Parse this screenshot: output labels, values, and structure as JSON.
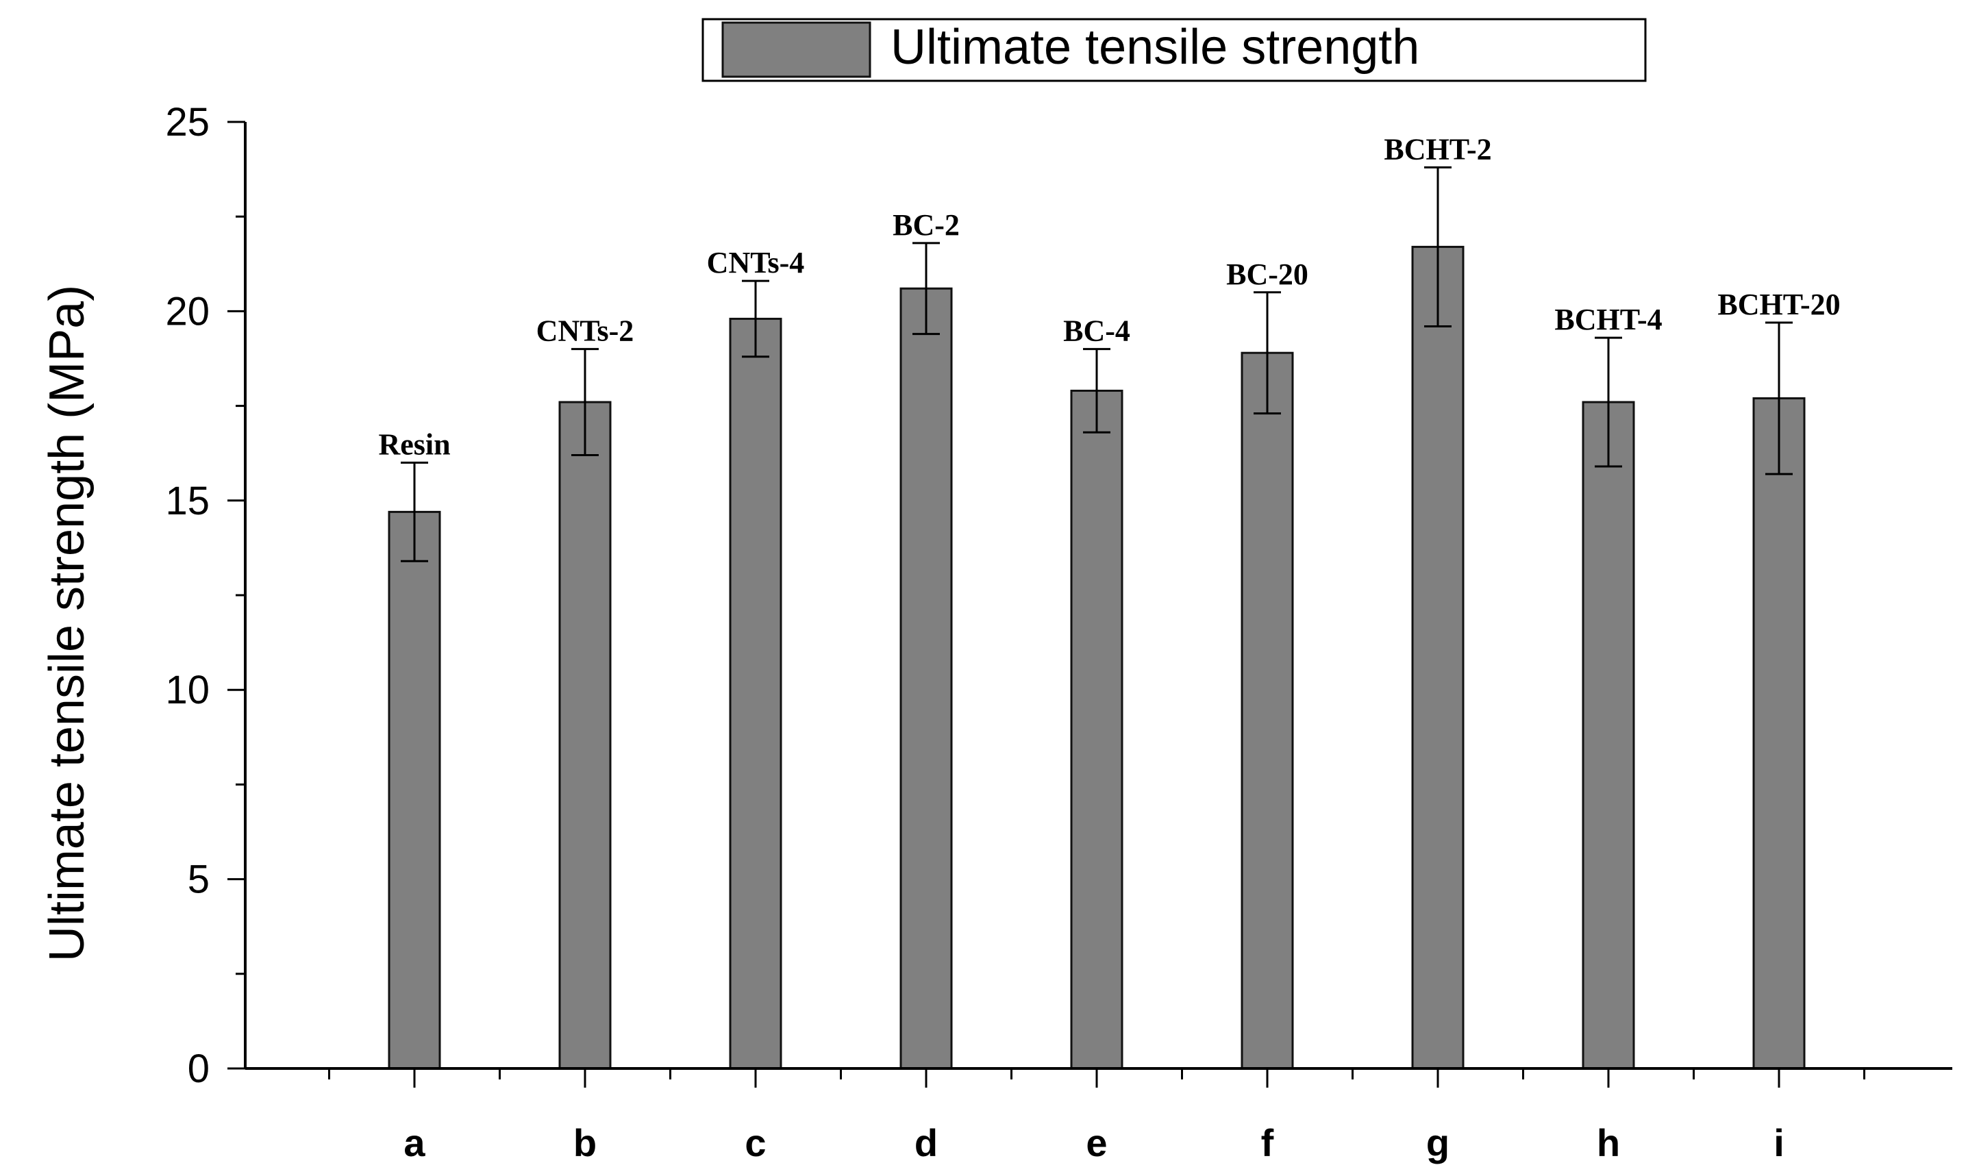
{
  "colors": {
    "bar_fill": "#808080",
    "bar_stroke": "#111111",
    "axis": "#000000",
    "background": "#ffffff"
  },
  "chart_data": {
    "type": "bar",
    "title": "",
    "xlabel": "",
    "ylabel": "Ultimate tensile strength (MPa)",
    "ylim": [
      0,
      25
    ],
    "yticks": [
      0,
      5,
      10,
      15,
      20,
      25
    ],
    "grid": false,
    "legend_position": "top",
    "categories": [
      "a",
      "b",
      "c",
      "d",
      "e",
      "f",
      "g",
      "h",
      "i"
    ],
    "series": [
      {
        "name": "Ultimate tensile strength",
        "values": [
          14.7,
          17.6,
          19.8,
          20.6,
          17.9,
          18.9,
          21.7,
          17.6,
          17.7
        ],
        "errors": [
          1.3,
          1.4,
          1.0,
          1.2,
          1.1,
          1.6,
          2.1,
          1.7,
          2.0
        ],
        "labels": [
          "Resin",
          "CNTs-2",
          "CNTs-4",
          "BC-2",
          "BC-4",
          "BC-20",
          "BCHT-2",
          "BCHT-4",
          "BCHT-20"
        ]
      }
    ]
  }
}
